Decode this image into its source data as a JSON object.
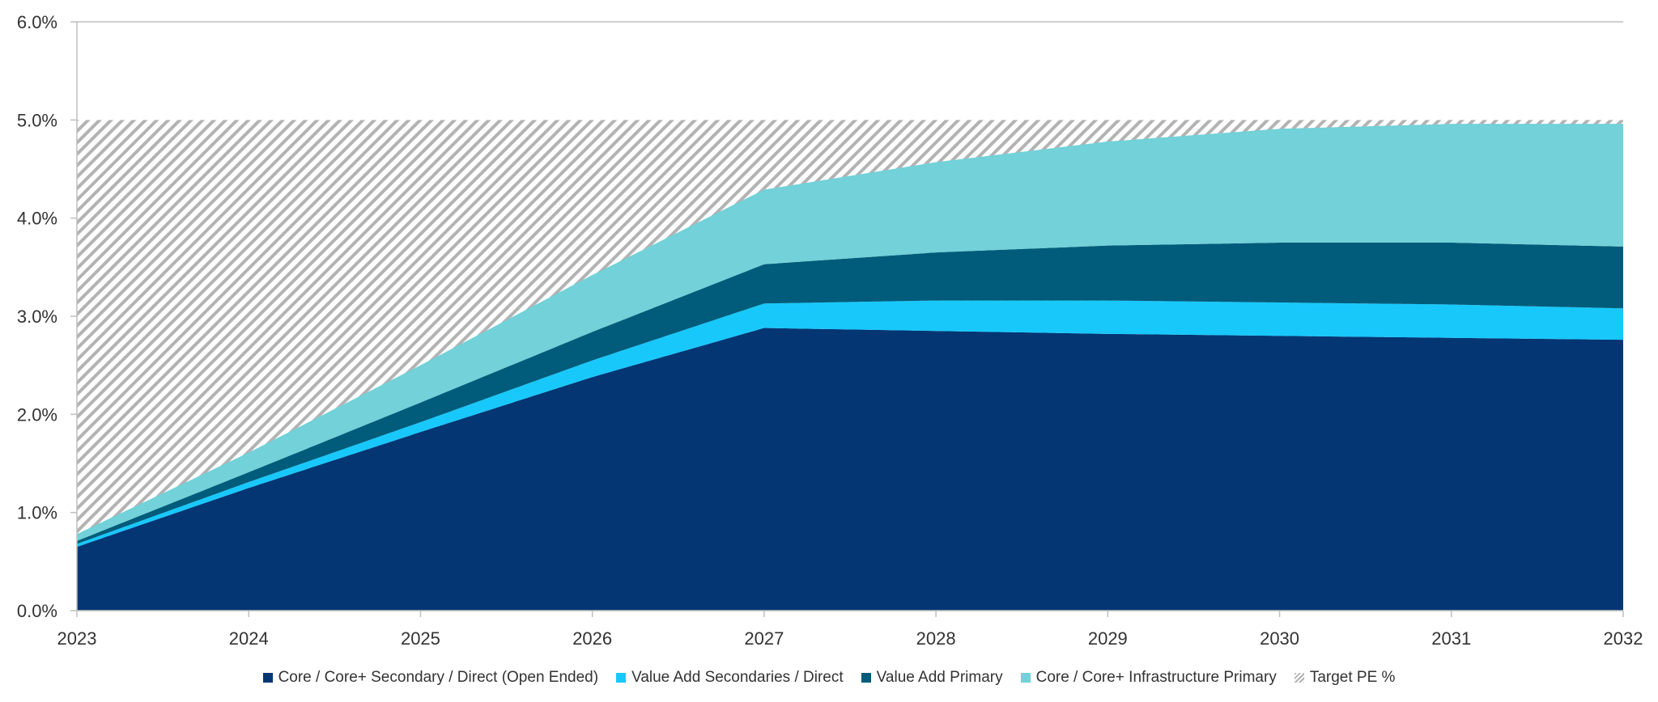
{
  "chart_data": {
    "type": "area",
    "x": [
      "2023",
      "2024",
      "2025",
      "2026",
      "2027",
      "2028",
      "2029",
      "2030",
      "2031",
      "2032"
    ],
    "ylim": [
      0,
      6
    ],
    "y_ticks": [
      "0.0%",
      "1.0%",
      "2.0%",
      "3.0%",
      "4.0%",
      "5.0%",
      "6.0%"
    ],
    "grid": "horizontal",
    "legend_position": "bottom",
    "stacked_series": [
      {
        "name": "Core / Core+ Secondary / Direct (Open Ended)",
        "color": "#043673",
        "values": [
          0.65,
          1.25,
          1.82,
          2.38,
          2.88,
          2.85,
          2.82,
          2.8,
          2.78,
          2.76
        ]
      },
      {
        "name": "Value Add Secondaries / Direct",
        "color": "#18c8fb",
        "values": [
          0.03,
          0.06,
          0.1,
          0.17,
          0.25,
          0.31,
          0.34,
          0.34,
          0.34,
          0.32
        ]
      },
      {
        "name": "Value Add Primary",
        "color": "#005c7a",
        "values": [
          0.03,
          0.1,
          0.2,
          0.29,
          0.4,
          0.49,
          0.56,
          0.61,
          0.63,
          0.63
        ]
      },
      {
        "name": "Core / Core+ Infrastructure Primary",
        "color": "#72d1d9",
        "values": [
          0.07,
          0.2,
          0.38,
          0.58,
          0.76,
          0.92,
          1.06,
          1.16,
          1.21,
          1.25
        ]
      }
    ],
    "target": {
      "name": "Target PE %",
      "value": 5.0
    }
  }
}
